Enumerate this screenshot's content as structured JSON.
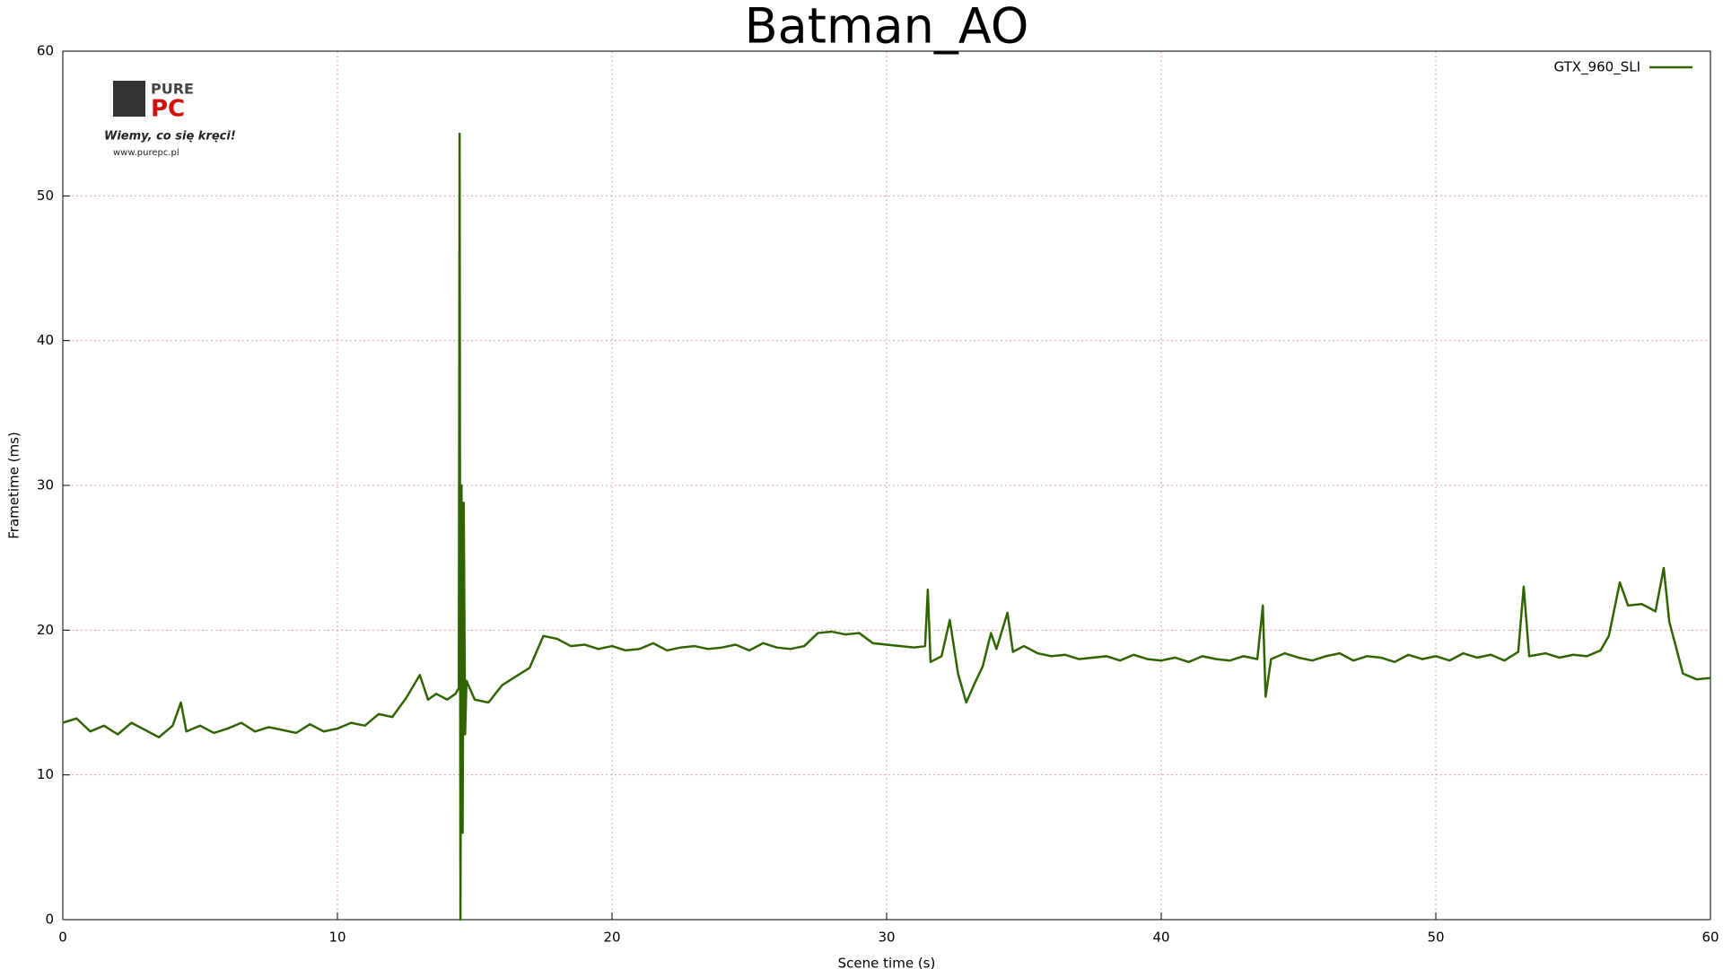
{
  "chart_data": {
    "type": "line",
    "title": "Batman_AO",
    "x_label": "Scene time (s)",
    "y_label": "Frametime (ms)",
    "xlim": [
      0,
      60
    ],
    "xticks": [
      0,
      10,
      20,
      30,
      40,
      50,
      60
    ],
    "ylim": [
      0,
      60
    ],
    "yticks": [
      0,
      10,
      20,
      30,
      40,
      50,
      60
    ],
    "grid": true,
    "legend": "top-right",
    "x": [
      0,
      0.5,
      1,
      1.5,
      2,
      2.5,
      3,
      3.5,
      4,
      4.3,
      4.5,
      5,
      5.5,
      6,
      6.5,
      7,
      7.5,
      8,
      8.5,
      9,
      9.5,
      10,
      10.5,
      11,
      11.5,
      12,
      12.5,
      13,
      13.3,
      13.6,
      14,
      14.3,
      14.42,
      14.45,
      14.48,
      14.52,
      14.56,
      14.6,
      14.65,
      14.7,
      15,
      15.5,
      16,
      16.5,
      17,
      17.5,
      18,
      18.5,
      19,
      19.5,
      20,
      20.5,
      21,
      21.5,
      22,
      22.5,
      23,
      23.5,
      24,
      24.5,
      25,
      25.5,
      26,
      26.5,
      27,
      27.5,
      28,
      28.5,
      29,
      29.5,
      30,
      30.5,
      31,
      31.4,
      31.5,
      31.6,
      32,
      32.3,
      32.6,
      32.9,
      33.2,
      33.5,
      33.8,
      34,
      34.4,
      34.6,
      35,
      35.5,
      36,
      36.5,
      37,
      37.5,
      38,
      38.5,
      39,
      39.5,
      40,
      40.5,
      41,
      41.5,
      42,
      42.5,
      43,
      43.5,
      43.7,
      43.8,
      44,
      44.5,
      45,
      45.5,
      46,
      46.5,
      47,
      47.5,
      48,
      48.5,
      49,
      49.5,
      50,
      50.5,
      51,
      51.5,
      52,
      52.5,
      53,
      53.2,
      53.4,
      54,
      54.5,
      55,
      55.5,
      56,
      56.3,
      56.7,
      57,
      57.5,
      58,
      58.3,
      58.5,
      59,
      59.5,
      60
    ],
    "series": [
      {
        "name": "GTX_960_SLI",
        "color": "#2f6400",
        "values": [
          13.6,
          13.9,
          13.0,
          13.4,
          12.8,
          13.6,
          13.1,
          12.6,
          13.4,
          15.0,
          13.0,
          13.4,
          12.9,
          13.2,
          13.6,
          13.0,
          13.3,
          13.1,
          12.9,
          13.5,
          13.0,
          13.2,
          13.6,
          13.4,
          14.2,
          14.0,
          15.3,
          16.9,
          15.2,
          15.6,
          15.2,
          15.6,
          16.0,
          54.3,
          0,
          30.0,
          6.0,
          28.8,
          12.8,
          16.5,
          15.2,
          15.0,
          16.2,
          16.8,
          17.4,
          19.6,
          19.4,
          18.9,
          19.0,
          18.7,
          18.9,
          18.6,
          18.7,
          19.1,
          18.6,
          18.8,
          18.9,
          18.7,
          18.8,
          19.0,
          18.6,
          19.1,
          18.8,
          18.7,
          18.9,
          19.8,
          19.9,
          19.7,
          19.8,
          19.1,
          19.0,
          18.9,
          18.8,
          18.9,
          22.8,
          17.8,
          18.2,
          20.7,
          17.0,
          15.0,
          16.3,
          17.5,
          19.8,
          18.7,
          21.2,
          18.5,
          18.9,
          18.4,
          18.2,
          18.3,
          18.0,
          18.1,
          18.2,
          17.9,
          18.3,
          18.0,
          17.9,
          18.1,
          17.8,
          18.2,
          18.0,
          17.9,
          18.2,
          18.0,
          21.7,
          15.4,
          18.0,
          18.4,
          18.1,
          17.9,
          18.2,
          18.4,
          17.9,
          18.2,
          18.1,
          17.8,
          18.3,
          18.0,
          18.2,
          17.9,
          18.4,
          18.1,
          18.3,
          17.9,
          18.5,
          23.0,
          18.2,
          18.4,
          18.1,
          18.3,
          18.2,
          18.6,
          19.6,
          23.3,
          21.7,
          21.8,
          21.3,
          24.3,
          20.6,
          17.0,
          16.6,
          16.7
        ]
      }
    ]
  },
  "logo": {
    "top": "PURE",
    "main": "PC",
    "slogan": "Wiemy, co się kręci!",
    "url": "www.purepc.pl"
  }
}
